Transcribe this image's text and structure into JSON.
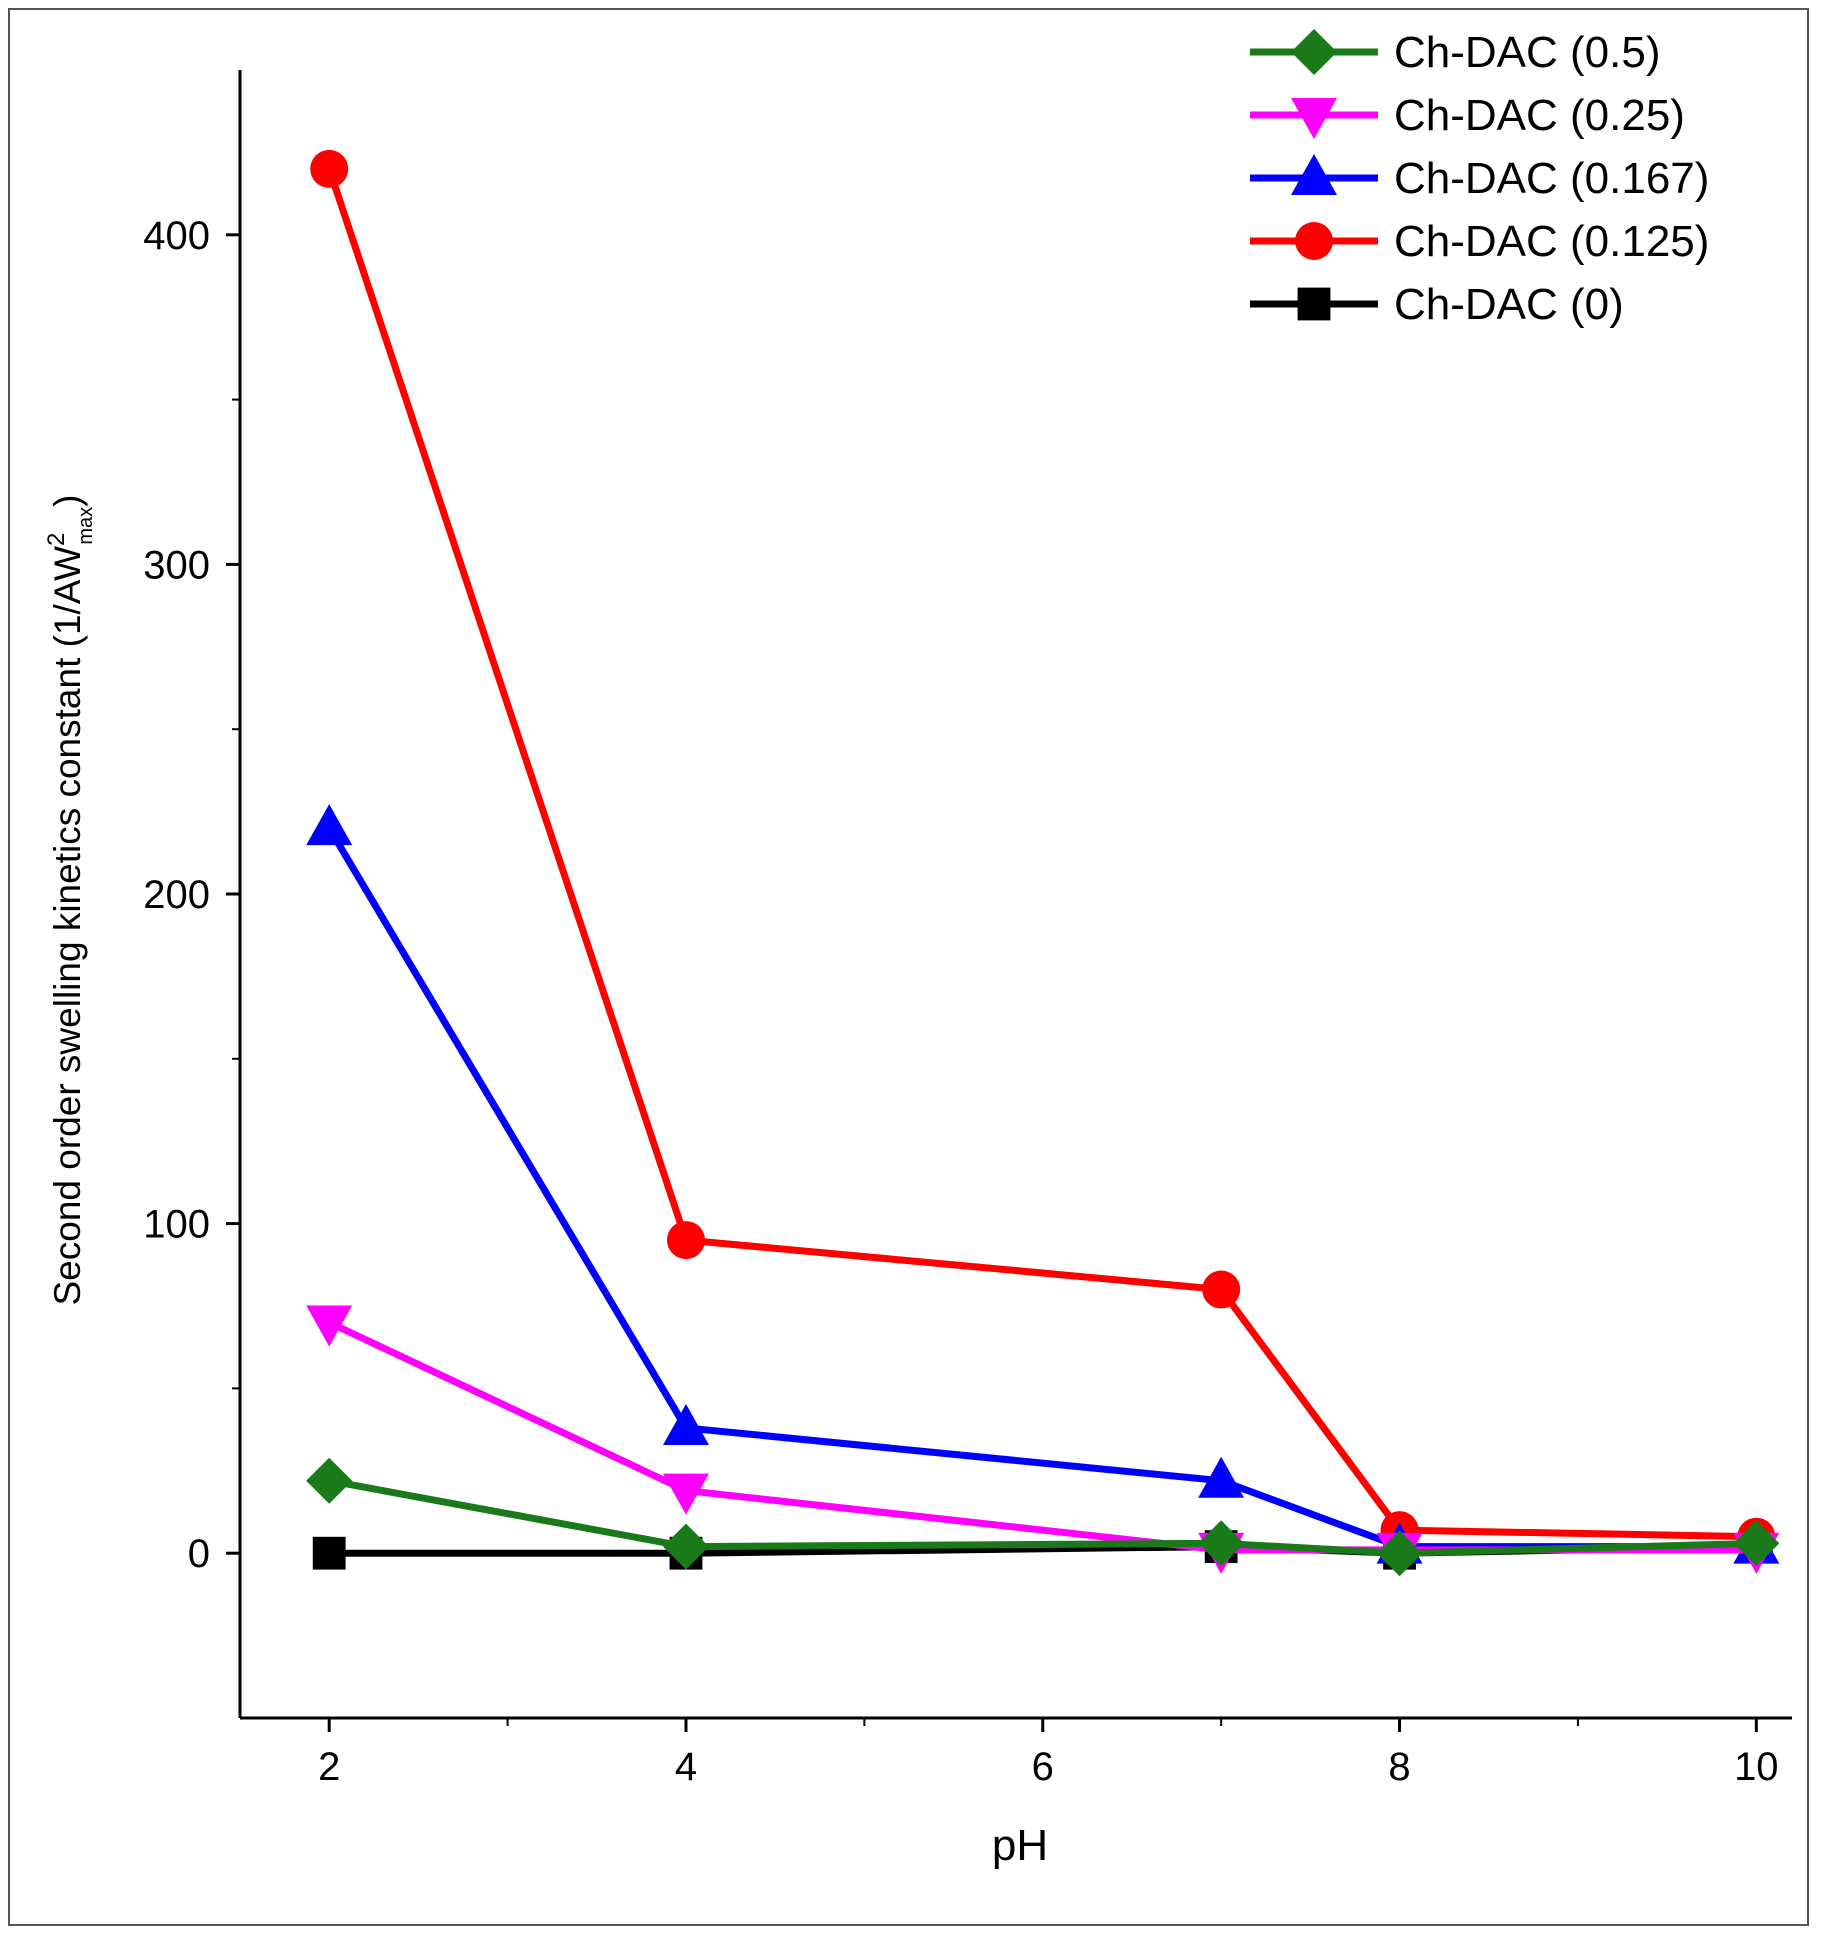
{
  "chart_data": {
    "type": "line",
    "title": "",
    "xlabel": "pH",
    "ylabel": {
      "main": "Second order swelling kinetics constant (1/AW",
      "sup": "2",
      "sub": "max",
      "close": ")"
    },
    "xlim": [
      1.5,
      10.2
    ],
    "ylim": [
      -50,
      450
    ],
    "xticks": [
      2,
      4,
      6,
      8,
      10
    ],
    "yticks": [
      0,
      100,
      200,
      300,
      400
    ],
    "x_minor_ticks": [
      3,
      5,
      7,
      9
    ],
    "y_minor_ticks": [
      50,
      150,
      250,
      350
    ],
    "x": [
      2,
      4,
      7,
      8,
      10
    ],
    "series": [
      {
        "name": "Ch-DAC (0.5)",
        "color": "#1a7a1a",
        "marker": "diamond",
        "values": [
          22,
          2,
          3,
          0,
          3
        ]
      },
      {
        "name": "Ch-DAC (0.25)",
        "color": "#ff00ff",
        "marker": "triangle-down",
        "values": [
          70,
          19,
          1,
          1,
          1
        ]
      },
      {
        "name": "Ch-DAC (0.167)",
        "color": "#0000ff",
        "marker": "triangle-up",
        "values": [
          220,
          38,
          22,
          2,
          2
        ]
      },
      {
        "name": "Ch-DAC (0.125)",
        "color": "#ff0000",
        "marker": "circle",
        "values": [
          420,
          95,
          80,
          7,
          5
        ]
      },
      {
        "name": "Ch-DAC (0)",
        "color": "#000000",
        "marker": "square",
        "values": [
          0,
          0,
          2,
          0,
          2
        ]
      }
    ],
    "draw_order": [
      4,
      3,
      2,
      1,
      0
    ],
    "legend_position": "top-right",
    "grid": false
  }
}
